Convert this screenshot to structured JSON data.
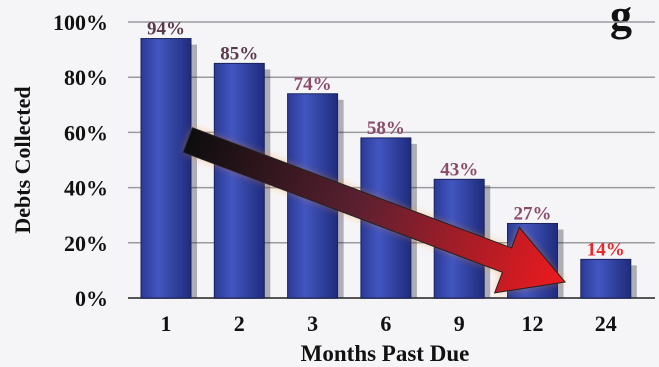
{
  "chart_data": {
    "type": "bar",
    "title_fragment": "g",
    "categories": [
      "1",
      "2",
      "3",
      "6",
      "9",
      "12",
      "24"
    ],
    "values": [
      94,
      85,
      74,
      58,
      43,
      27,
      14
    ],
    "data_labels": [
      "94%",
      "85%",
      "74%",
      "58%",
      "43%",
      "27%",
      "14%"
    ],
    "xlabel": "Months Past Due",
    "ylabel": "Debts Collected",
    "ylim": [
      0,
      100
    ],
    "yticks": [
      "0%",
      "20%",
      "40%",
      "60%",
      "80%",
      "100%"
    ],
    "grid": true,
    "annotation": "declining trend arrow from first bar to last bar",
    "colors": {
      "bar": "#3346a8",
      "bar_dark": "#1e2a78",
      "label_first": "#2a2a3a",
      "label_mid": "#8a4a6a",
      "label_last": "#e8282a",
      "arrow_start": "#111111",
      "arrow_end": "#e8181c"
    }
  }
}
